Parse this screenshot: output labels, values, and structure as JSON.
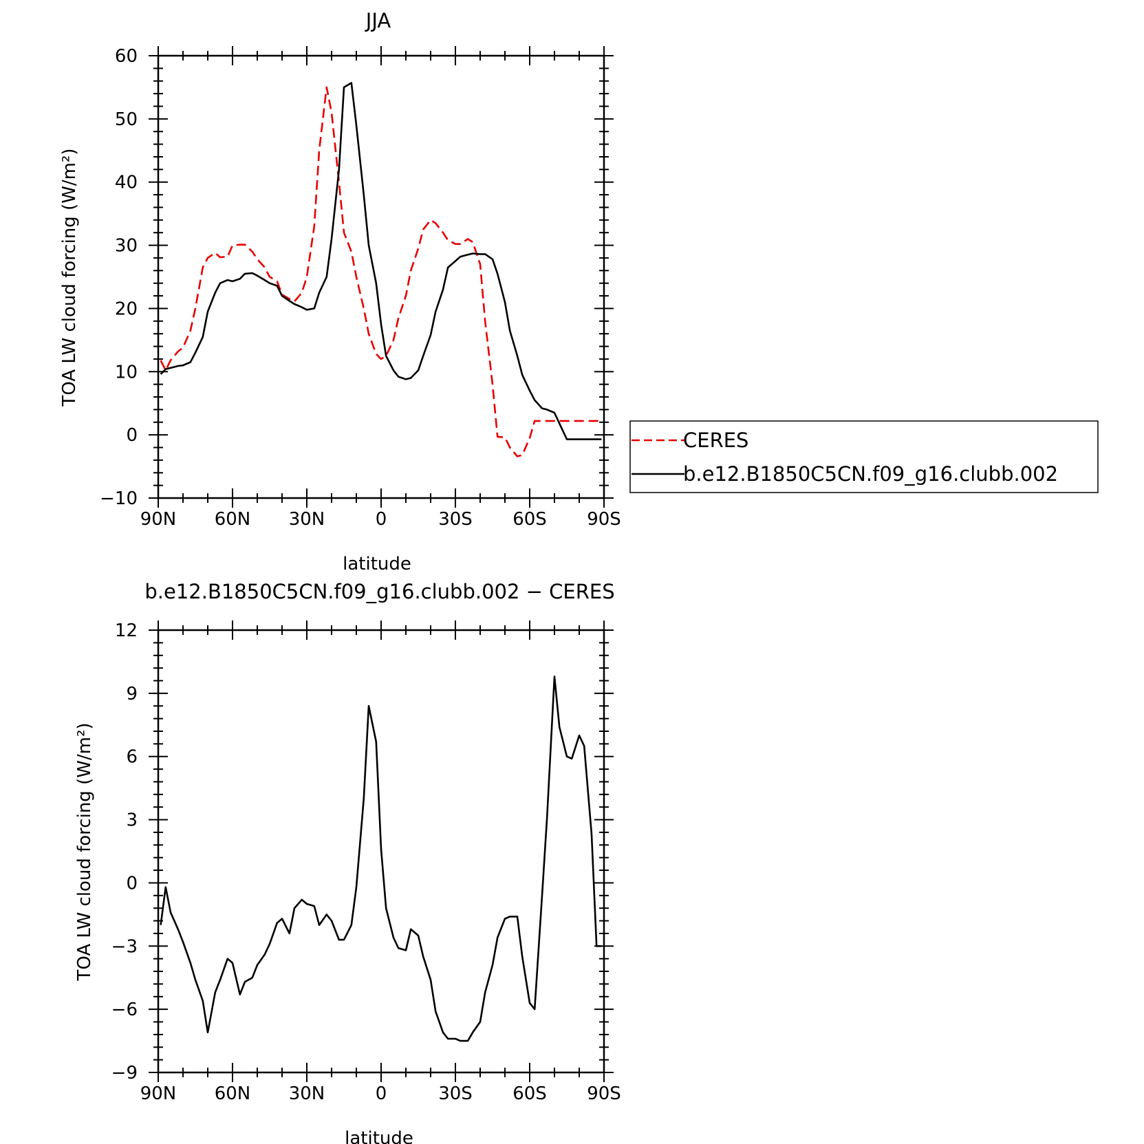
{
  "chart_data": [
    {
      "type": "line",
      "title": "JJA",
      "xlabel": "latitude",
      "ylabel": "TOA LW cloud forcing (W/m²)",
      "xlim": [
        90,
        -90
      ],
      "ylim": [
        -10,
        60
      ],
      "xticks": [
        90,
        60,
        30,
        0,
        -30,
        -60,
        -90
      ],
      "xtick_labels": [
        "90N",
        "60N",
        "30N",
        "0",
        "30S",
        "60S",
        "90S"
      ],
      "yticks": [
        -10,
        0,
        10,
        20,
        30,
        40,
        50,
        60
      ],
      "ytick_labels": [
        "−10",
        "0",
        "10",
        "20",
        "30",
        "40",
        "50",
        "60"
      ],
      "legend_position": "right",
      "series": [
        {
          "name": "CERES",
          "color": "#e60000",
          "dash": "dashed",
          "x": [
            89,
            87,
            85,
            82,
            80,
            77,
            75,
            72,
            70,
            67,
            65,
            62,
            60,
            57,
            55,
            52,
            50,
            47,
            45,
            42,
            40,
            37,
            35,
            32,
            30,
            27,
            25,
            22,
            20,
            17,
            15,
            12,
            10,
            7,
            5,
            2,
            0,
            -2,
            -5,
            -7,
            -10,
            -12,
            -15,
            -17,
            -20,
            -22,
            -25,
            -27,
            -30,
            -32,
            -35,
            -37,
            -40,
            -42,
            -45,
            -47,
            -50,
            -52,
            -55,
            -57,
            -60,
            -62,
            -65,
            -67,
            -70,
            -72,
            -75,
            -77,
            -80,
            -82,
            -85,
            -87,
            -89
          ],
          "y": [
            11.8,
            10.2,
            11.8,
            13.2,
            13.8,
            16.5,
            20.0,
            26.5,
            28.0,
            28.8,
            28.1,
            28.2,
            30.0,
            30.1,
            30.1,
            29.0,
            27.8,
            26.5,
            25.0,
            24.3,
            22.2,
            21.5,
            21.1,
            22.5,
            25.0,
            33.0,
            45.0,
            55.0,
            51.0,
            40.0,
            32.0,
            29.0,
            25.0,
            20.0,
            16.0,
            12.8,
            12.0,
            12.5,
            15.0,
            18.5,
            22.0,
            26.0,
            29.5,
            32.5,
            34.0,
            33.5,
            32.0,
            30.8,
            30.2,
            30.2,
            31.0,
            30.5,
            27.0,
            18.0,
            8.0,
            -0.3,
            -0.4,
            -2.0,
            -3.4,
            -3.2,
            -0.5,
            2.2,
            2.2,
            2.2,
            2.2,
            2.2,
            2.2,
            2.2,
            2.2,
            2.2,
            2.2,
            2.2,
            2.2
          ]
        },
        {
          "name": "b.e12.B1850C5CN.f09_g16.clubb.002",
          "color": "#000000",
          "dash": "solid",
          "x": [
            89,
            87,
            85,
            82,
            80,
            77,
            75,
            72,
            70,
            67,
            65,
            62,
            60,
            57,
            55,
            52,
            50,
            47,
            45,
            42,
            40,
            37,
            35,
            32,
            30,
            27,
            25,
            22,
            20,
            17,
            15,
            12,
            10,
            7,
            5,
            2,
            0,
            -2,
            -5,
            -7,
            -10,
            -12,
            -15,
            -17,
            -20,
            -22,
            -25,
            -27,
            -30,
            -32,
            -35,
            -37,
            -40,
            -42,
            -45,
            -47,
            -50,
            -52,
            -55,
            -57,
            -60,
            -62,
            -65,
            -67,
            -70,
            -72,
            -75,
            -77,
            -80,
            -82,
            -85,
            -87,
            -89
          ],
          "y": [
            9.6,
            10.4,
            10.6,
            10.9,
            11.0,
            11.5,
            13.0,
            15.5,
            19.5,
            22.5,
            24.0,
            24.5,
            24.3,
            24.7,
            25.5,
            25.6,
            25.2,
            24.5,
            24.0,
            23.6,
            22.0,
            21.2,
            20.7,
            20.2,
            19.8,
            20.0,
            22.5,
            25.0,
            31.0,
            42.0,
            55.0,
            55.7,
            49.0,
            38.0,
            30.0,
            24.0,
            17.5,
            12.5,
            10.2,
            9.2,
            8.8,
            9.0,
            10.2,
            12.5,
            15.8,
            19.5,
            23.0,
            26.5,
            27.5,
            28.2,
            28.5,
            28.7,
            28.6,
            28.6,
            27.8,
            25.5,
            21.0,
            16.5,
            12.5,
            9.5,
            7.0,
            5.5,
            4.2,
            4.0,
            3.5,
            1.8,
            -0.7,
            -0.7,
            -0.7,
            -0.7,
            -0.7,
            -0.7,
            -0.7
          ]
        }
      ]
    },
    {
      "type": "line",
      "title": "b.e12.B1850C5CN.f09_g16.clubb.002 − CERES",
      "xlabel": "latitude",
      "ylabel": "TOA LW cloud forcing (W/m²)",
      "xlim": [
        90,
        -90
      ],
      "ylim": [
        -9,
        12
      ],
      "xticks": [
        90,
        60,
        30,
        0,
        -30,
        -60,
        -90
      ],
      "xtick_labels": [
        "90N",
        "60N",
        "30N",
        "0",
        "30S",
        "60S",
        "90S"
      ],
      "yticks": [
        -9,
        -6,
        -3,
        0,
        3,
        6,
        9,
        12
      ],
      "ytick_labels": [
        "−9",
        "−6",
        "−3",
        "0",
        "3",
        "6",
        "9",
        "12"
      ],
      "series": [
        {
          "color": "#000000",
          "dash": "solid",
          "x": [
            89,
            87,
            85,
            82,
            80,
            77,
            75,
            72,
            70,
            67,
            65,
            62,
            60,
            57,
            55,
            52,
            50,
            47,
            45,
            42,
            40,
            37,
            35,
            32,
            30,
            27,
            25,
            22,
            20,
            17,
            15,
            12,
            10,
            7,
            5,
            2,
            0,
            -2,
            -5,
            -7,
            -10,
            -12,
            -15,
            -17,
            -20,
            -22,
            -25,
            -27,
            -30,
            -32,
            -35,
            -37,
            -40,
            -42,
            -45,
            -47,
            -50,
            -52,
            -55,
            -57,
            -60,
            -62,
            -65,
            -67,
            -70,
            -72,
            -75,
            -77,
            -80,
            -82,
            -85,
            -87,
            -89
          ],
          "y": [
            -2.0,
            -0.2,
            -1.4,
            -2.2,
            -2.8,
            -3.8,
            -4.6,
            -5.6,
            -7.1,
            -5.2,
            -4.6,
            -3.6,
            -3.8,
            -5.3,
            -4.7,
            -4.5,
            -3.9,
            -3.4,
            -2.9,
            -1.9,
            -1.7,
            -2.4,
            -1.2,
            -0.8,
            -1.0,
            -1.1,
            -2.0,
            -1.5,
            -1.8,
            -2.7,
            -2.7,
            -2.0,
            -0.2,
            4.0,
            8.4,
            6.7,
            1.6,
            -1.2,
            -2.6,
            -3.1,
            -3.2,
            -2.2,
            -2.5,
            -3.5,
            -4.6,
            -6.1,
            -7.1,
            -7.4,
            -7.4,
            -7.5,
            -7.5,
            -7.1,
            -6.6,
            -5.2,
            -3.9,
            -2.6,
            -1.7,
            -1.6,
            -1.6,
            -3.5,
            -5.7,
            -6.0,
            -0.6,
            3.1,
            9.8,
            7.4,
            6.0,
            5.9,
            7.0,
            6.5,
            2.3,
            -3.0,
            -3.0
          ]
        }
      ]
    }
  ]
}
